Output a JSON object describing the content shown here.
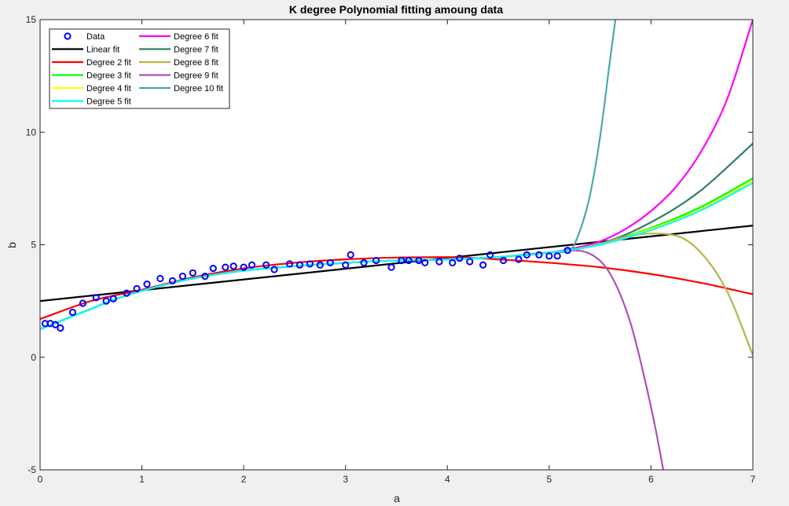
{
  "chart_data": {
    "type": "line",
    "title": "K degree Polynomial fitting amoung data",
    "xlabel": "a",
    "ylabel": "b",
    "xlim": [
      0,
      7
    ],
    "ylim": [
      -5,
      15
    ],
    "xticks": [
      "0",
      "1",
      "2",
      "3",
      "4",
      "5",
      "6",
      "7"
    ],
    "yticks": [
      "-5",
      "0",
      "5",
      "10",
      "15"
    ],
    "legend_position": "top-left",
    "scatter": {
      "name": "Data",
      "color": "#0000ff",
      "x": [
        0.05,
        0.1,
        0.15,
        0.2,
        0.32,
        0.42,
        0.55,
        0.65,
        0.72,
        0.85,
        0.95,
        1.05,
        1.18,
        1.3,
        1.4,
        1.5,
        1.62,
        1.7,
        1.82,
        1.9,
        2.0,
        2.08,
        2.22,
        2.3,
        2.45,
        2.55,
        2.65,
        2.75,
        2.85,
        3.0,
        3.05,
        3.18,
        3.3,
        3.45,
        3.55,
        3.62,
        3.72,
        3.78,
        3.92,
        4.05,
        4.12,
        4.22,
        4.35,
        4.42,
        4.55,
        4.7,
        4.78,
        4.9,
        5.0,
        5.08,
        5.18
      ],
      "y": [
        1.5,
        1.5,
        1.45,
        1.3,
        2.0,
        2.4,
        2.65,
        2.5,
        2.6,
        2.85,
        3.05,
        3.25,
        3.5,
        3.4,
        3.6,
        3.75,
        3.6,
        3.95,
        4.0,
        4.05,
        4.0,
        4.1,
        4.1,
        3.9,
        4.15,
        4.1,
        4.15,
        4.1,
        4.2,
        4.1,
        4.55,
        4.2,
        4.3,
        4.0,
        4.3,
        4.3,
        4.3,
        4.2,
        4.25,
        4.2,
        4.4,
        4.25,
        4.1,
        4.55,
        4.3,
        4.35,
        4.55,
        4.55,
        4.5,
        4.5,
        4.75
      ]
    },
    "series": [
      {
        "name": "Linear fit",
        "color": "#000000",
        "x": [
          0,
          7
        ],
        "y": [
          2.5,
          5.85
        ]
      },
      {
        "name": "Degree 2 fit",
        "color": "#ff0000",
        "x": [
          0,
          0.5,
          1,
          1.5,
          2,
          2.5,
          3,
          3.5,
          4,
          4.5,
          5,
          5.5,
          6,
          6.5,
          7
        ],
        "y": [
          1.7,
          2.5,
          3.0,
          3.55,
          3.95,
          4.2,
          4.35,
          4.43,
          4.45,
          4.35,
          4.2,
          4.0,
          3.7,
          3.3,
          2.8
        ]
      },
      {
        "name": "Degree 3 fit",
        "color": "#00ff00",
        "x": [
          0,
          0.25,
          0.5,
          0.75,
          1,
          1.5,
          2,
          2.5,
          3,
          3.5,
          4,
          4.5,
          5,
          5.5,
          6,
          6.5,
          7
        ],
        "y": [
          1.25,
          1.7,
          2.15,
          2.6,
          2.95,
          3.5,
          3.85,
          4.05,
          4.2,
          4.3,
          4.35,
          4.45,
          4.65,
          5.05,
          5.75,
          6.7,
          7.95
        ]
      },
      {
        "name": "Degree 4 fit",
        "color": "#ffff00",
        "x": [
          0,
          0.25,
          0.5,
          0.75,
          1,
          1.5,
          2,
          2.5,
          3,
          3.5,
          4,
          4.5,
          5,
          5.5,
          6,
          6.5,
          7
        ],
        "y": [
          1.25,
          1.7,
          2.15,
          2.6,
          2.95,
          3.5,
          3.85,
          4.05,
          4.2,
          4.3,
          4.35,
          4.45,
          4.65,
          5.03,
          5.7,
          6.6,
          7.85
        ]
      },
      {
        "name": "Degree 5 fit",
        "color": "#00ffff",
        "x": [
          0,
          0.25,
          0.5,
          0.75,
          1,
          1.5,
          2,
          2.5,
          3,
          3.5,
          4,
          4.5,
          5,
          5.5,
          6,
          6.5,
          7
        ],
        "y": [
          1.25,
          1.7,
          2.15,
          2.6,
          2.95,
          3.5,
          3.85,
          4.05,
          4.2,
          4.3,
          4.35,
          4.45,
          4.65,
          5.0,
          5.65,
          6.55,
          7.75
        ]
      },
      {
        "name": "Degree 6 fit",
        "color": "#ff00ff",
        "x": [
          0,
          0.25,
          0.5,
          0.75,
          1,
          1.5,
          2,
          2.5,
          3,
          3.5,
          4,
          4.5,
          5,
          5.25,
          5.5,
          5.75,
          6,
          6.25,
          6.5,
          6.75,
          7
        ],
        "y": [
          1.25,
          1.7,
          2.15,
          2.6,
          2.95,
          3.5,
          3.85,
          4.05,
          4.2,
          4.3,
          4.35,
          4.45,
          4.65,
          4.85,
          5.15,
          5.7,
          6.5,
          7.6,
          9.2,
          11.5,
          15.0
        ]
      },
      {
        "name": "Degree 7 fit",
        "color": "#2f7f6f",
        "x": [
          0,
          0.25,
          0.5,
          0.75,
          1,
          1.5,
          2,
          2.5,
          3,
          3.5,
          4,
          4.5,
          5,
          5.25,
          5.5,
          5.75,
          6,
          6.25,
          6.5,
          6.75,
          7
        ],
        "y": [
          1.25,
          1.7,
          2.15,
          2.6,
          2.95,
          3.5,
          3.85,
          4.05,
          4.2,
          4.3,
          4.35,
          4.45,
          4.65,
          4.8,
          5.05,
          5.45,
          6.0,
          6.65,
          7.45,
          8.45,
          9.5
        ]
      },
      {
        "name": "Degree 8 fit",
        "color": "#b5b548",
        "x": [
          0,
          0.25,
          0.5,
          0.75,
          1,
          1.5,
          2,
          2.5,
          3,
          3.5,
          4,
          4.5,
          5,
          5.25,
          5.5,
          5.75,
          6,
          6.25,
          6.5,
          6.75,
          7
        ],
        "y": [
          1.25,
          1.7,
          2.15,
          2.6,
          2.95,
          3.5,
          3.85,
          4.05,
          4.2,
          4.3,
          4.35,
          4.45,
          4.65,
          4.8,
          5.05,
          5.35,
          5.5,
          5.4,
          4.6,
          2.9,
          0.1
        ]
      },
      {
        "name": "Degree 9 fit",
        "color": "#b04fb8",
        "x": [
          0,
          0.25,
          0.5,
          0.75,
          1,
          1.5,
          2,
          2.5,
          3,
          3.5,
          4,
          4.5,
          5,
          5.2,
          5.4,
          5.6,
          5.8,
          5.95,
          6.05,
          6.12
        ],
        "y": [
          1.25,
          1.7,
          2.15,
          2.6,
          2.95,
          3.5,
          3.85,
          4.05,
          4.2,
          4.3,
          4.35,
          4.45,
          4.65,
          4.75,
          4.6,
          3.7,
          1.5,
          -1.2,
          -3.3,
          -5.0
        ]
      },
      {
        "name": "Degree 10 fit",
        "color": "#4ba9a9",
        "x": [
          0,
          0.25,
          0.5,
          0.75,
          1,
          1.5,
          2,
          2.5,
          3,
          3.5,
          4,
          4.5,
          5,
          5.2,
          5.3,
          5.4,
          5.5,
          5.6,
          5.65
        ],
        "y": [
          1.25,
          1.7,
          2.15,
          2.6,
          2.95,
          3.5,
          3.85,
          4.05,
          4.2,
          4.3,
          4.35,
          4.45,
          4.65,
          4.75,
          5.6,
          7.2,
          9.8,
          13.3,
          15.0
        ]
      }
    ]
  }
}
